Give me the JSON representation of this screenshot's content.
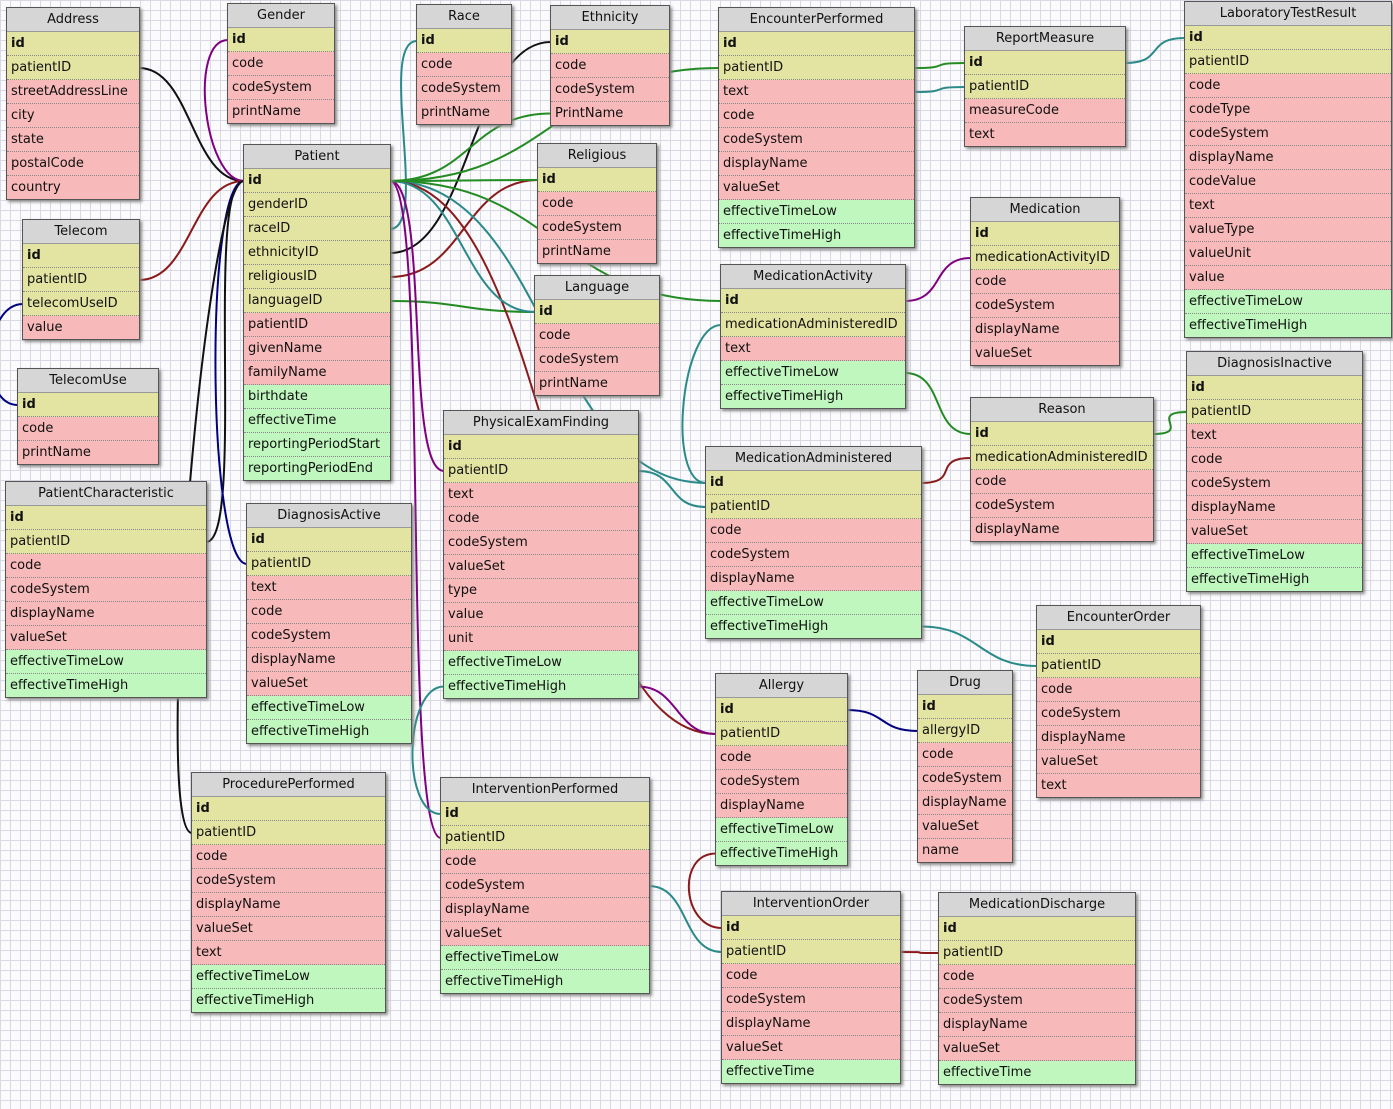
{
  "colors": {
    "key": "#e4e4a2",
    "field": "#f7b9b9",
    "time": "#bff7bf",
    "header": "#d6d6d6"
  },
  "tables": [
    {
      "name": "Address",
      "key": [
        "id",
        "patientID"
      ],
      "fields": [
        "streetAddressLine",
        "city",
        "state",
        "postalCode",
        "country"
      ],
      "time": []
    },
    {
      "name": "Gender",
      "key": [
        "id"
      ],
      "fields": [
        "code",
        "codeSystem",
        "printName"
      ],
      "time": []
    },
    {
      "name": "Race",
      "key": [
        "id"
      ],
      "fields": [
        "code",
        "codeSystem",
        "printName"
      ],
      "time": []
    },
    {
      "name": "Ethnicity",
      "key": [
        "id"
      ],
      "fields": [
        "code",
        "codeSystem",
        "PrintName"
      ],
      "time": []
    },
    {
      "name": "EncounterPerformed",
      "key": [
        "id",
        "patientID"
      ],
      "fields": [
        "text",
        "code",
        "codeSystem",
        "displayName",
        "valueSet"
      ],
      "time": [
        "effectiveTimeLow",
        "effectiveTimeHigh"
      ]
    },
    {
      "name": "ReportMeasure",
      "key": [
        "id",
        "patientID"
      ],
      "fields": [
        "measureCode",
        "text"
      ],
      "time": []
    },
    {
      "name": "LaboratoryTestResult",
      "key": [
        "id",
        "patientID"
      ],
      "fields": [
        "code",
        "codeType",
        "codeSystem",
        "displayName",
        "codeValue",
        "text",
        "valueType",
        "valueUnit",
        "value"
      ],
      "time": [
        "effectiveTimeLow",
        "effectiveTimeHigh"
      ]
    },
    {
      "name": "Patient",
      "key": [
        "id",
        "genderID",
        "raceID",
        "ethnicityID",
        "religiousID",
        "languageID"
      ],
      "fields": [
        "patientID",
        "givenName",
        "familyName"
      ],
      "time": [
        "birthdate",
        "effectiveTime",
        "reportingPeriodStart",
        "reportingPeriodEnd"
      ]
    },
    {
      "name": "Religious",
      "key": [
        "id"
      ],
      "fields": [
        "code",
        "codeSystem",
        "printName"
      ],
      "time": []
    },
    {
      "name": "Telecom",
      "key": [
        "id",
        "patientID",
        "telecomUseID"
      ],
      "fields": [
        "value"
      ],
      "time": []
    },
    {
      "name": "Medication",
      "key": [
        "id",
        "medicationActivityID"
      ],
      "fields": [
        "code",
        "codeSystem",
        "displayName",
        "valueSet"
      ],
      "time": []
    },
    {
      "name": "MedicationActivity",
      "key": [
        "id",
        "medicationAdministeredID"
      ],
      "fields": [
        "text"
      ],
      "time": [
        "effectiveTimeLow",
        "effectiveTimeHigh"
      ]
    },
    {
      "name": "Language",
      "key": [
        "id"
      ],
      "fields": [
        "code",
        "codeSystem",
        "printName"
      ],
      "time": []
    },
    {
      "name": "TelecomUse",
      "key": [
        "id"
      ],
      "fields": [
        "code",
        "printName"
      ],
      "time": []
    },
    {
      "name": "DiagnosisInactive",
      "key": [
        "id",
        "patientID"
      ],
      "fields": [
        "text",
        "code",
        "codeSystem",
        "displayName",
        "valueSet"
      ],
      "time": [
        "effectiveTimeLow",
        "effectiveTimeHigh"
      ]
    },
    {
      "name": "Reason",
      "key": [
        "id",
        "medicationAdministeredID"
      ],
      "fields": [
        "code",
        "codeSystem",
        "displayName"
      ],
      "time": []
    },
    {
      "name": "PhysicalExamFinding",
      "key": [
        "id",
        "patientID"
      ],
      "fields": [
        "text",
        "code",
        "codeSystem",
        "valueSet",
        "type",
        "value",
        "unit"
      ],
      "time": [
        "effectiveTimeLow",
        "effectiveTimeHigh"
      ]
    },
    {
      "name": "MedicationAdministered",
      "key": [
        "id",
        "patientID"
      ],
      "fields": [
        "code",
        "codeSystem",
        "displayName"
      ],
      "time": [
        "effectiveTimeLow",
        "effectiveTimeHigh"
      ]
    },
    {
      "name": "PatientCharacteristic",
      "key": [
        "id",
        "patientID"
      ],
      "fields": [
        "code",
        "codeSystem",
        "displayName",
        "valueSet"
      ],
      "time": [
        "effectiveTimeLow",
        "effectiveTimeHigh"
      ]
    },
    {
      "name": "DiagnosisActive",
      "key": [
        "id",
        "patientID"
      ],
      "fields": [
        "text",
        "code",
        "codeSystem",
        "displayName",
        "valueSet"
      ],
      "time": [
        "effectiveTimeLow",
        "effectiveTimeHigh"
      ]
    },
    {
      "name": "EncounterOrder",
      "key": [
        "id",
        "patientID"
      ],
      "fields": [
        "code",
        "codeSystem",
        "displayName",
        "valueSet",
        "text"
      ],
      "time": []
    },
    {
      "name": "Allergy",
      "key": [
        "id",
        "patientID"
      ],
      "fields": [
        "code",
        "codeSystem",
        "displayName"
      ],
      "time": [
        "effectiveTimeLow",
        "effectiveTimeHigh"
      ]
    },
    {
      "name": "Drug",
      "key": [
        "id",
        "allergyID"
      ],
      "fields": [
        "code",
        "codeSystem",
        "displayName",
        "valueSet",
        "name"
      ],
      "time": []
    },
    {
      "name": "ProcedurePerformed",
      "key": [
        "id",
        "patientID"
      ],
      "fields": [
        "code",
        "codeSystem",
        "displayName",
        "valueSet",
        "text"
      ],
      "time": [
        "effectiveTimeLow",
        "effectiveTimeHigh"
      ]
    },
    {
      "name": "InterventionPerformed",
      "key": [
        "id",
        "patientID"
      ],
      "fields": [
        "code",
        "codeSystem",
        "displayName",
        "valueSet"
      ],
      "time": [
        "effectiveTimeLow",
        "effectiveTimeHigh"
      ]
    },
    {
      "name": "InterventionOrder",
      "key": [
        "id",
        "patientID"
      ],
      "fields": [
        "code",
        "codeSystem",
        "displayName",
        "valueSet"
      ],
      "time": [
        "effectiveTime"
      ]
    },
    {
      "name": "MedicationDischarge",
      "key": [
        "id",
        "patientID"
      ],
      "fields": [
        "code",
        "codeSystem",
        "displayName",
        "valueSet"
      ],
      "time": [
        "effectiveTime"
      ]
    }
  ],
  "relations": [
    {
      "from": "Address.patientID",
      "to": "Patient.id",
      "color": "#111111"
    },
    {
      "from": "Gender.id",
      "to": "Patient.id",
      "color": "#800080"
    },
    {
      "from": "Race.id",
      "to": "Patient.raceID",
      "color": "#2a8a8a"
    },
    {
      "from": "Ethnicity.id",
      "to": "Patient.ethnicityID",
      "color": "#111111"
    },
    {
      "from": "Religious.id",
      "to": "Patient.religiousID",
      "color": "#8b1a1a"
    },
    {
      "from": "Language.id",
      "to": "Patient.languageID",
      "color": "#228b22"
    },
    {
      "from": "Telecom.patientID",
      "to": "Patient.id",
      "color": "#8b1a1a"
    },
    {
      "from": "TelecomUse.id",
      "to": "Telecom.telecomUseID",
      "color": "#000080"
    },
    {
      "from": "PatientCharacteristic.patientID",
      "to": "Patient.id",
      "color": "#111111"
    },
    {
      "from": "DiagnosisActive.patientID",
      "to": "Patient.id",
      "color": "#000080"
    },
    {
      "from": "ProcedurePerformed.patientID",
      "to": "Patient.id",
      "color": "#111111"
    },
    {
      "from": "InterventionPerformed.patientID",
      "to": "Patient.id",
      "color": "#800080"
    },
    {
      "from": "PhysicalExamFinding.patientID",
      "to": "Patient.id",
      "color": "#800080"
    },
    {
      "from": "EncounterPerformed.patientID",
      "to": "Patient.id",
      "color": "#228b22"
    },
    {
      "from": "Ethnicity.PrintName",
      "to": "Patient.id",
      "color": "#228b22"
    },
    {
      "from": "ReportMeasure.id",
      "to": "EncounterPerformed.patientID",
      "color": "#228b22"
    },
    {
      "from": "ReportMeasure.patientID",
      "to": "EncounterPerformed.text",
      "color": "#2a8a8a"
    },
    {
      "from": "LaboratoryTestResult.id",
      "to": "ReportMeasure.id",
      "color": "#2a8a8a"
    },
    {
      "from": "MedicationActivity.id",
      "to": "Patient.id",
      "color": "#228b22"
    },
    {
      "from": "Medication.medicationActivityID",
      "to": "MedicationActivity.id",
      "color": "#800080"
    },
    {
      "from": "MedicationAdministered.id",
      "to": "MedicationActivity.medicationAdministeredID",
      "color": "#2a8a8a"
    },
    {
      "from": "Reason.medicationAdministeredID",
      "to": "MedicationAdministered.id",
      "color": "#8b1a1a"
    },
    {
      "from": "MedicationAdministered.patientID",
      "to": "PhysicalExamFinding.patientID",
      "color": "#2a8a8a"
    },
    {
      "from": "MedicationAdministered.id",
      "to": "Patient.id",
      "color": "#2a8a8a"
    },
    {
      "from": "DiagnosisInactive.patientID",
      "to": "Reason.id",
      "color": "#228b22"
    },
    {
      "from": "Reason.id",
      "to": "MedicationActivity.effectiveTimeLow",
      "color": "#228b22"
    },
    {
      "from": "EncounterOrder.patientID",
      "to": "MedicationAdministered.effectiveTimeHigh",
      "color": "#2a8a8a"
    },
    {
      "from": "Allergy.patientID",
      "to": "Patient.id",
      "color": "#8b1a1a"
    },
    {
      "from": "Allergy.patientID",
      "to": "PhysicalExamFinding.effectiveTimeHigh",
      "color": "#800080"
    },
    {
      "from": "Drug.allergyID",
      "to": "Allergy.id",
      "color": "#000080"
    },
    {
      "from": "InterventionOrder.patientID",
      "to": "InterventionPerformed.codeSystem",
      "color": "#2a8a8a"
    },
    {
      "from": "MedicationDischarge.patientID",
      "to": "InterventionOrder.patientID",
      "color": "#8b1a1a"
    },
    {
      "from": "InterventionOrder.id",
      "to": "Allergy.effectiveTimeHigh",
      "color": "#8b1a1a"
    },
    {
      "from": "InterventionPerformed.id",
      "to": "PhysicalExamFinding.effectiveTimeHigh",
      "color": "#2a8a8a"
    },
    {
      "from": "Language.id",
      "to": "Patient.id",
      "color": "#2a8a8a"
    },
    {
      "from": "Religious.id",
      "to": "Patient.id",
      "color": "#228b22"
    }
  ]
}
